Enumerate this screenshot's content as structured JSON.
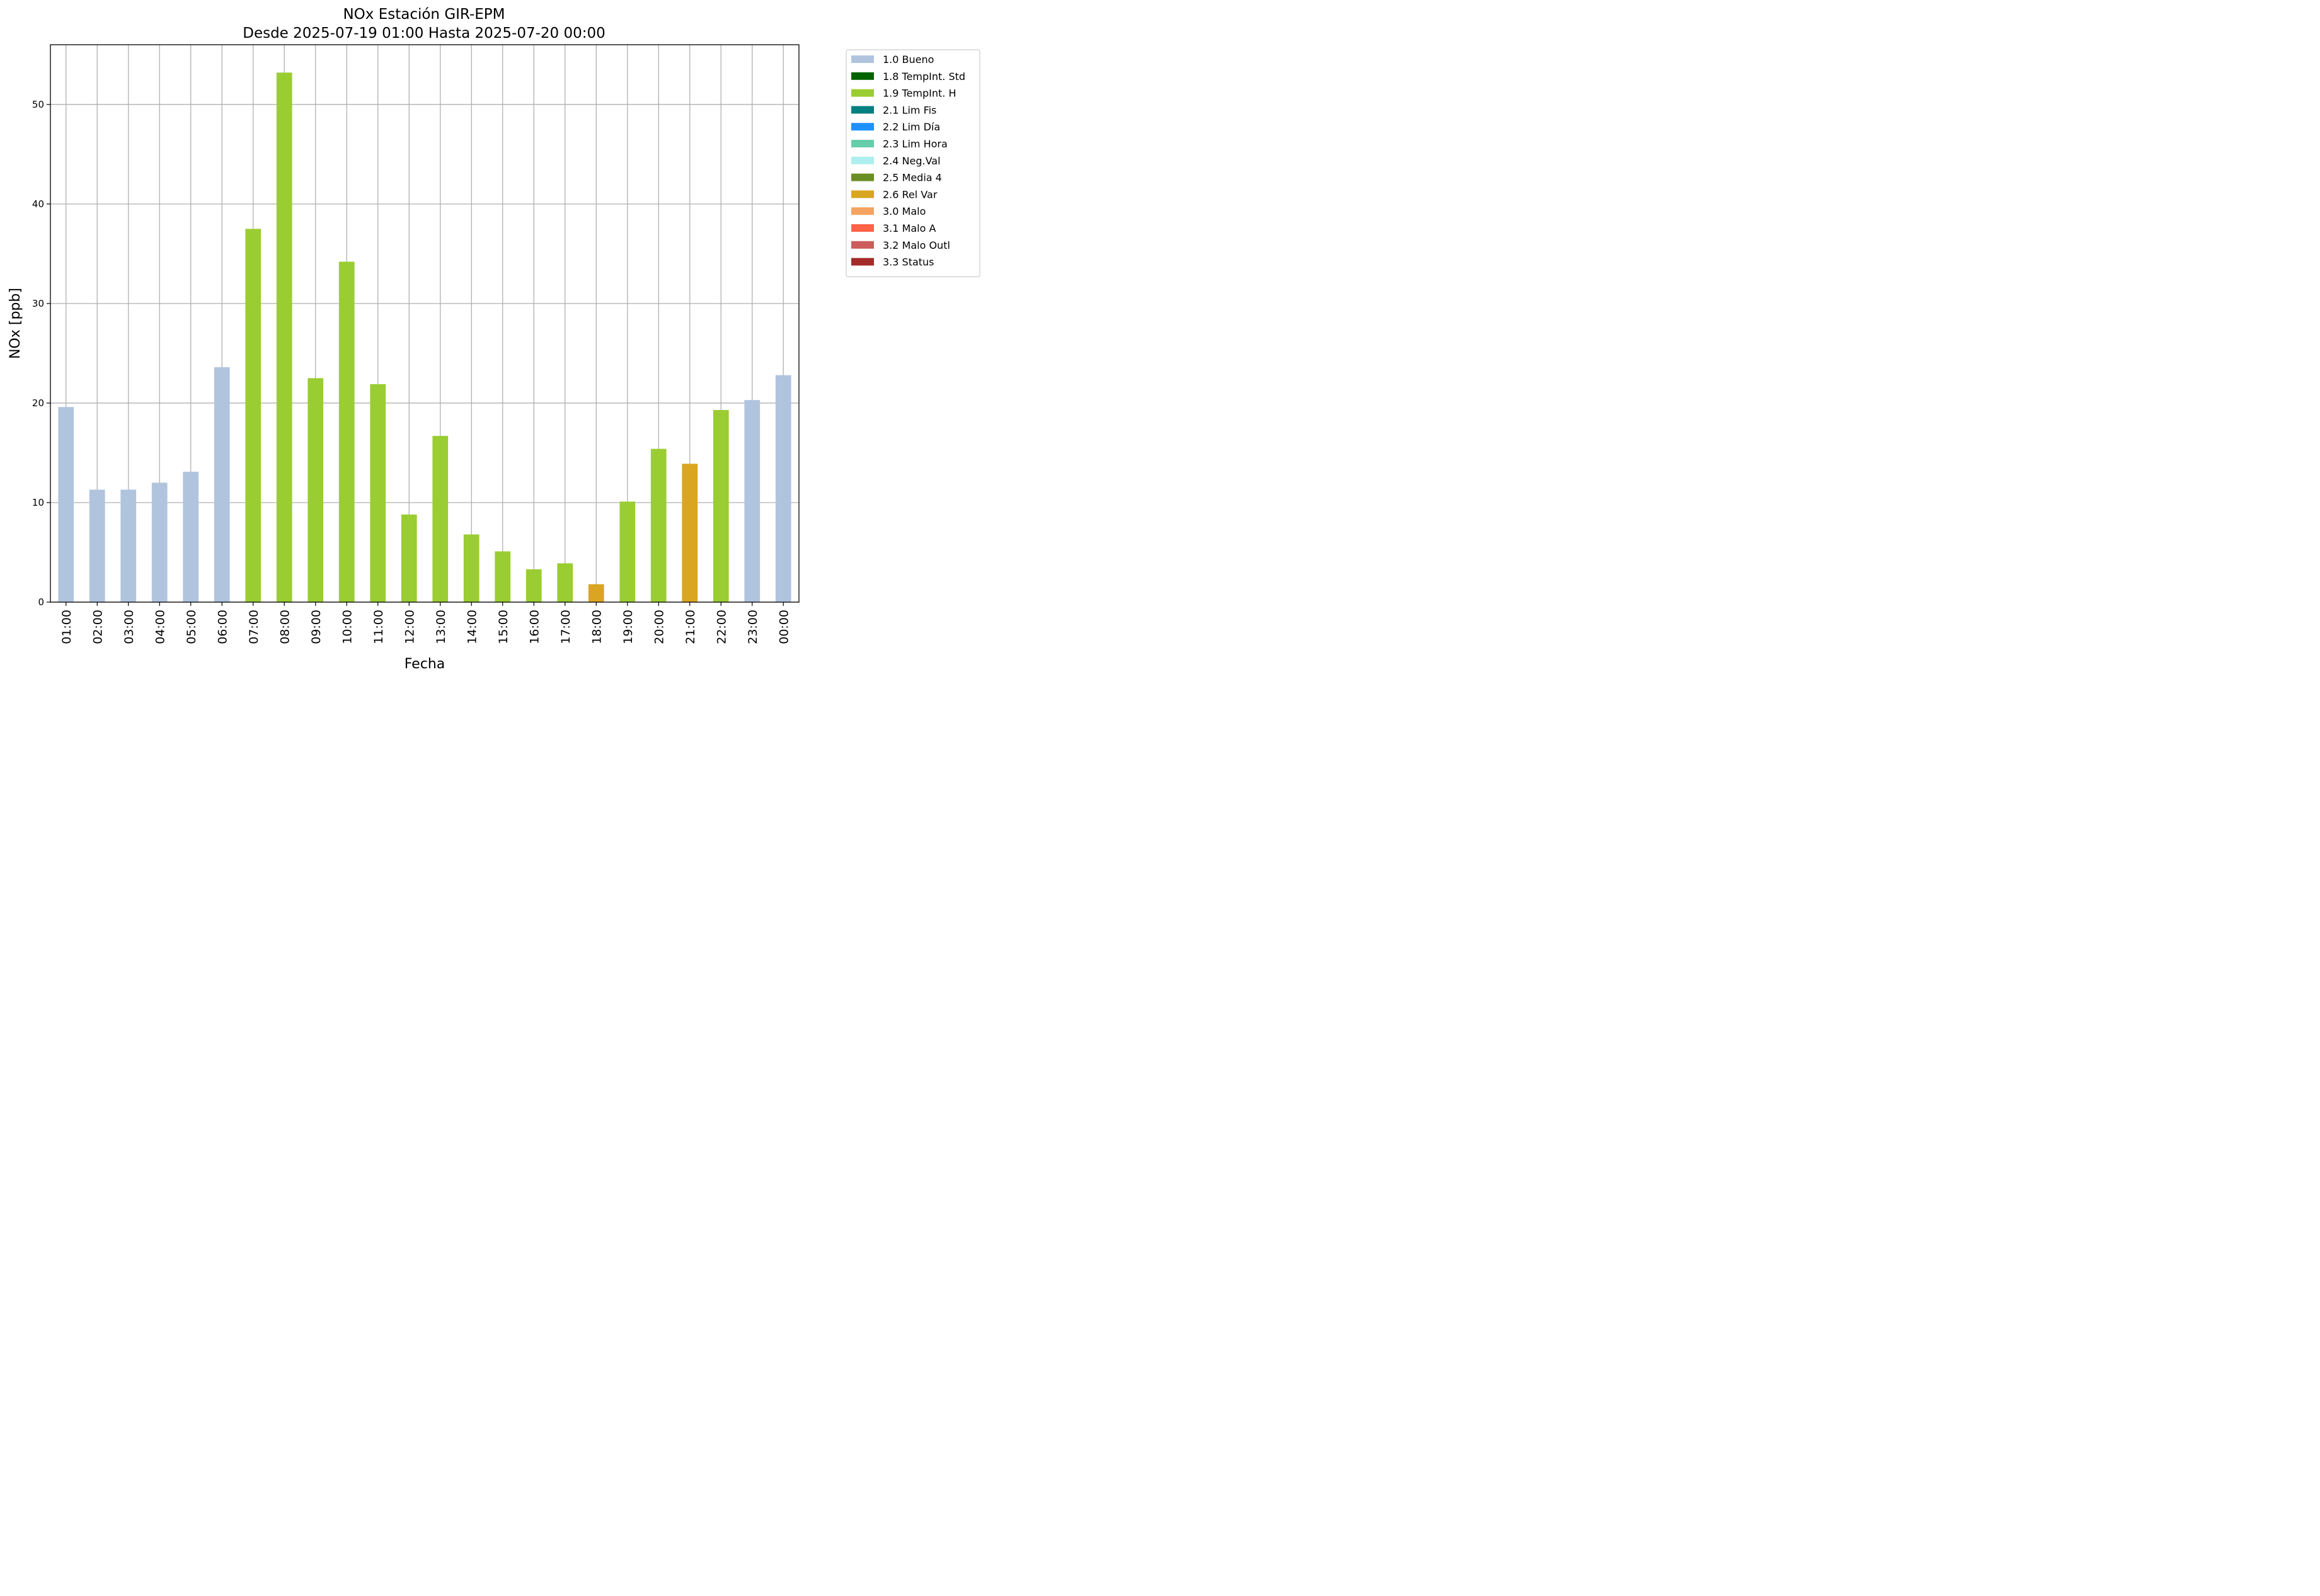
{
  "chart_data": {
    "type": "bar",
    "title": "NOx Estación GIR-EPM",
    "subtitle": "Desde 2025-07-19 01:00 Hasta 2025-07-20 00:00",
    "xlabel": "Fecha",
    "ylabel": "NOx [ppb]",
    "ylim": [
      0,
      56
    ],
    "yticks": [
      0,
      10,
      20,
      30,
      40,
      50
    ],
    "grid": true,
    "legend_position": "outside-right-top",
    "categories": [
      "01:00",
      "02:00",
      "03:00",
      "04:00",
      "05:00",
      "06:00",
      "07:00",
      "08:00",
      "09:00",
      "10:00",
      "11:00",
      "12:00",
      "13:00",
      "14:00",
      "15:00",
      "16:00",
      "17:00",
      "18:00",
      "19:00",
      "20:00",
      "21:00",
      "22:00",
      "23:00",
      "00:00"
    ],
    "values": [
      19.6,
      11.3,
      11.3,
      12.0,
      13.1,
      23.6,
      37.5,
      53.2,
      22.5,
      34.2,
      21.9,
      8.8,
      16.7,
      6.8,
      5.1,
      3.3,
      3.9,
      1.8,
      10.1,
      15.4,
      13.9,
      19.3,
      20.3,
      22.8
    ],
    "flags": [
      "1.0 Bueno",
      "1.0 Bueno",
      "1.0 Bueno",
      "1.0 Bueno",
      "1.0 Bueno",
      "1.0 Bueno",
      "1.9 TempInt. H",
      "1.9 TempInt. H",
      "1.9 TempInt. H",
      "1.9 TempInt. H",
      "1.9 TempInt. H",
      "1.9 TempInt. H",
      "1.9 TempInt. H",
      "1.9 TempInt. H",
      "1.9 TempInt. H",
      "1.9 TempInt. H",
      "1.9 TempInt. H",
      "2.6 Rel Var",
      "1.9 TempInt. H",
      "1.9 TempInt. H",
      "2.6 Rel Var",
      "1.9 TempInt. H",
      "1.0 Bueno",
      "1.0 Bueno"
    ],
    "legend": [
      {
        "label": "1.0 Bueno",
        "color": "#b0c4de"
      },
      {
        "label": "1.8 TempInt. Std",
        "color": "#006400"
      },
      {
        "label": "1.9 TempInt. H",
        "color": "#9acd32"
      },
      {
        "label": "2.1 Lim Fis",
        "color": "#008080"
      },
      {
        "label": "2.2 Lim Día",
        "color": "#1e90ff"
      },
      {
        "label": "2.3 Lim Hora",
        "color": "#66cdaa"
      },
      {
        "label": "2.4 Neg.Val",
        "color": "#afeeee"
      },
      {
        "label": "2.5 Media 4",
        "color": "#6b8e23"
      },
      {
        "label": "2.6 Rel Var",
        "color": "#daa520"
      },
      {
        "label": "3.0 Malo",
        "color": "#f4a460"
      },
      {
        "label": "3.1 Malo A",
        "color": "#ff6347"
      },
      {
        "label": "3.2 Malo Outl",
        "color": "#cd5c5c"
      },
      {
        "label": "3.3 Status",
        "color": "#a52a2a"
      }
    ]
  }
}
